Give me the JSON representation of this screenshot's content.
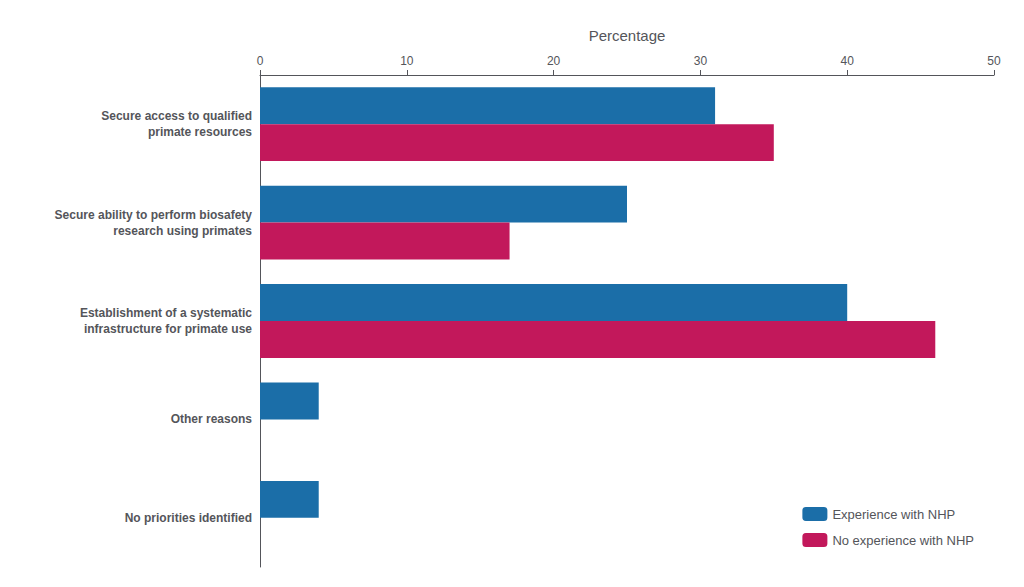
{
  "chart_data": {
    "type": "bar",
    "orientation": "horizontal",
    "xlabel": "Percentage",
    "categories": [
      "No priorities identified",
      "Other reasons",
      "Establishment of a systematic\ninfrastructure for primate use",
      "Secure ability to perform biosafety\nresearch using primates",
      "Secure access to qualified\nprimate resources"
    ],
    "series": [
      {
        "name": "Experience with NHP",
        "color": "#1B6EA8",
        "values": [
          4,
          4,
          40,
          25,
          31
        ]
      },
      {
        "name": "No experience with NHP",
        "color": "#C2185B",
        "values": [
          0,
          0,
          46,
          17,
          35
        ]
      }
    ],
    "xlim": [
      0,
      50
    ],
    "xticks": [
      0,
      10,
      20,
      30,
      40,
      50
    ],
    "grid": false,
    "legend": "lower right"
  }
}
